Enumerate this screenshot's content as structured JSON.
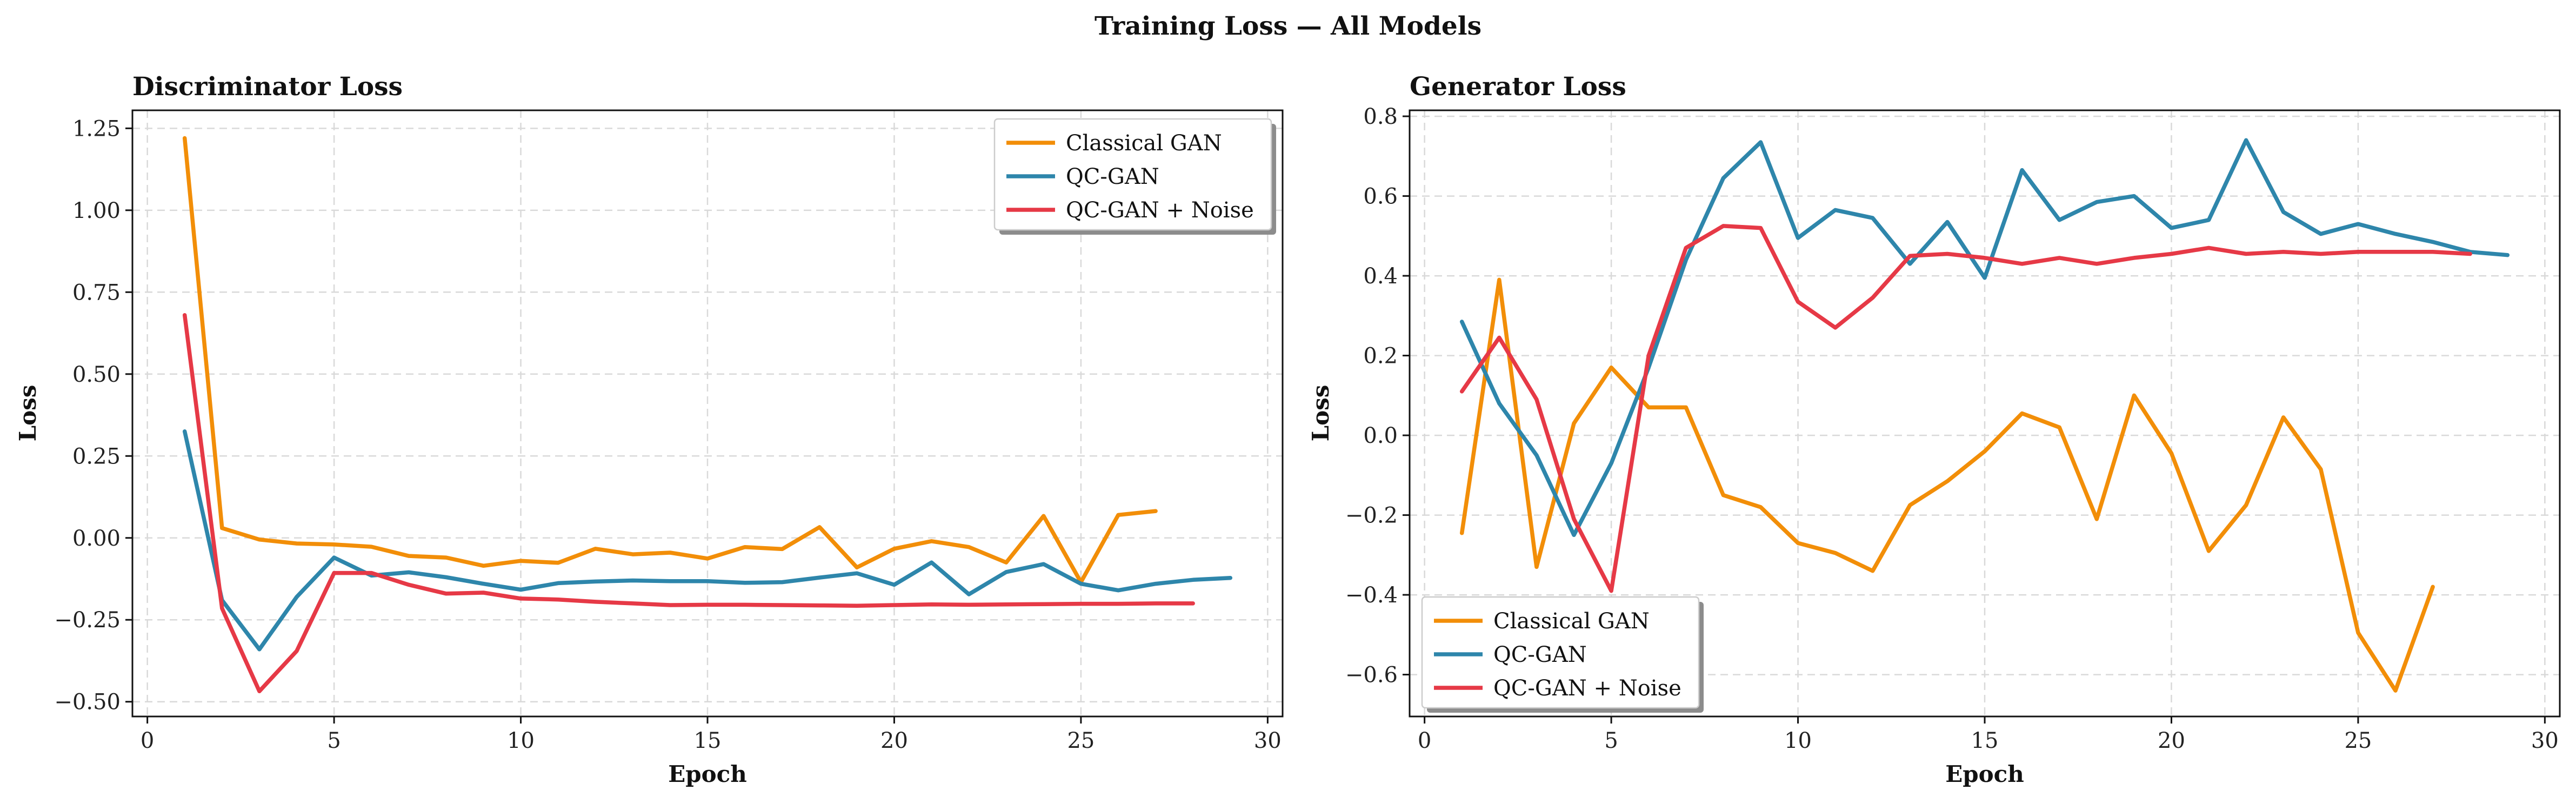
{
  "suptitle": "Training Loss — All Models",
  "colors": {
    "classical": "#F28E08",
    "qc": "#2E86AB",
    "qcnoise": "#E63946"
  },
  "chart_data": [
    {
      "type": "line",
      "title": "Discriminator Loss",
      "xlabel": "Epoch",
      "ylabel": "Loss",
      "xlim": [
        -0.4,
        30.4
      ],
      "ylim": [
        -0.545,
        1.305
      ],
      "xticks": [
        0,
        5,
        10,
        15,
        20,
        25,
        30
      ],
      "yticks": [
        -0.5,
        -0.25,
        0.0,
        0.25,
        0.5,
        0.75,
        1.0,
        1.25
      ],
      "tick_decimals": 2,
      "grid": true,
      "legend_position": "top-right",
      "series": [
        {
          "name": "Classical GAN",
          "color": "#F28E08",
          "x": [
            1,
            2,
            3,
            4,
            5,
            6,
            7,
            8,
            9,
            10,
            11,
            12,
            13,
            14,
            15,
            16,
            17,
            18,
            19,
            20,
            21,
            22,
            23,
            24,
            25,
            26,
            27
          ],
          "y": [
            1.22,
            0.03,
            -0.005,
            -0.017,
            -0.02,
            -0.027,
            -0.055,
            -0.06,
            -0.085,
            -0.07,
            -0.076,
            -0.033,
            -0.05,
            -0.045,
            -0.063,
            -0.028,
            -0.034,
            0.033,
            -0.09,
            -0.033,
            -0.01,
            -0.028,
            -0.075,
            0.067,
            -0.135,
            0.07,
            0.082
          ]
        },
        {
          "name": "QC-GAN",
          "color": "#2E86AB",
          "x": [
            1,
            2,
            3,
            4,
            5,
            6,
            7,
            8,
            9,
            10,
            11,
            12,
            13,
            14,
            15,
            16,
            17,
            18,
            19,
            20,
            21,
            22,
            23,
            24,
            25,
            26,
            27,
            28,
            29
          ],
          "y": [
            0.325,
            -0.19,
            -0.34,
            -0.18,
            -0.06,
            -0.115,
            -0.105,
            -0.12,
            -0.14,
            -0.158,
            -0.138,
            -0.133,
            -0.13,
            -0.132,
            -0.132,
            -0.137,
            -0.135,
            -0.121,
            -0.108,
            -0.143,
            -0.075,
            -0.172,
            -0.104,
            -0.08,
            -0.14,
            -0.16,
            -0.14,
            -0.128,
            -0.122
          ]
        },
        {
          "name": "QC-GAN + Noise",
          "color": "#E63946",
          "x": [
            1,
            2,
            3,
            4,
            5,
            6,
            7,
            8,
            9,
            10,
            11,
            12,
            13,
            14,
            15,
            16,
            17,
            18,
            19,
            20,
            21,
            22,
            23,
            24,
            25,
            26,
            27,
            28
          ],
          "y": [
            0.68,
            -0.215,
            -0.468,
            -0.345,
            -0.107,
            -0.107,
            -0.143,
            -0.17,
            -0.167,
            -0.185,
            -0.188,
            -0.195,
            -0.2,
            -0.205,
            -0.204,
            -0.204,
            -0.205,
            -0.206,
            -0.207,
            -0.205,
            -0.203,
            -0.204,
            -0.203,
            -0.202,
            -0.201,
            -0.201,
            -0.2,
            -0.2
          ]
        }
      ]
    },
    {
      "type": "line",
      "title": "Generator Loss",
      "xlabel": "Epoch",
      "ylabel": "Loss",
      "xlim": [
        -0.4,
        30.4
      ],
      "ylim": [
        -0.705,
        0.815
      ],
      "xticks": [
        0,
        5,
        10,
        15,
        20,
        25,
        30
      ],
      "yticks": [
        -0.6,
        -0.4,
        -0.2,
        0.0,
        0.2,
        0.4,
        0.6,
        0.8
      ],
      "tick_decimals": 1,
      "grid": true,
      "legend_position": "bottom-left",
      "series": [
        {
          "name": "Classical GAN",
          "color": "#F28E08",
          "x": [
            1,
            2,
            3,
            4,
            5,
            6,
            7,
            8,
            9,
            10,
            11,
            12,
            13,
            14,
            15,
            16,
            17,
            18,
            19,
            20,
            21,
            22,
            23,
            24,
            25,
            26,
            27
          ],
          "y": [
            -0.245,
            0.39,
            -0.33,
            0.03,
            0.17,
            0.07,
            0.07,
            -0.15,
            -0.18,
            -0.27,
            -0.295,
            -0.34,
            -0.175,
            -0.115,
            -0.04,
            0.055,
            0.02,
            -0.21,
            0.1,
            -0.045,
            -0.29,
            -0.175,
            0.045,
            -0.085,
            -0.495,
            -0.64,
            -0.38
          ]
        },
        {
          "name": "QC-GAN",
          "color": "#2E86AB",
          "x": [
            1,
            2,
            3,
            4,
            5,
            6,
            7,
            8,
            9,
            10,
            11,
            12,
            13,
            14,
            15,
            16,
            17,
            18,
            19,
            20,
            21,
            22,
            23,
            24,
            25,
            26,
            27,
            28,
            29
          ],
          "y": [
            0.285,
            0.08,
            -0.05,
            -0.25,
            -0.07,
            0.17,
            0.44,
            0.645,
            0.735,
            0.495,
            0.565,
            0.545,
            0.43,
            0.535,
            0.395,
            0.665,
            0.54,
            0.585,
            0.6,
            0.52,
            0.54,
            0.74,
            0.56,
            0.505,
            0.53,
            0.505,
            0.485,
            0.46,
            0.452
          ]
        },
        {
          "name": "QC-GAN + Noise",
          "color": "#E63946",
          "x": [
            1,
            2,
            3,
            4,
            5,
            6,
            7,
            8,
            9,
            10,
            11,
            12,
            13,
            14,
            15,
            16,
            17,
            18,
            19,
            20,
            21,
            22,
            23,
            24,
            25,
            26,
            27,
            28
          ],
          "y": [
            0.11,
            0.245,
            0.09,
            -0.21,
            -0.39,
            0.2,
            0.47,
            0.525,
            0.52,
            0.335,
            0.27,
            0.345,
            0.45,
            0.455,
            0.445,
            0.43,
            0.445,
            0.43,
            0.445,
            0.455,
            0.47,
            0.455,
            0.46,
            0.455,
            0.46,
            0.46,
            0.46,
            0.455
          ]
        }
      ]
    }
  ]
}
